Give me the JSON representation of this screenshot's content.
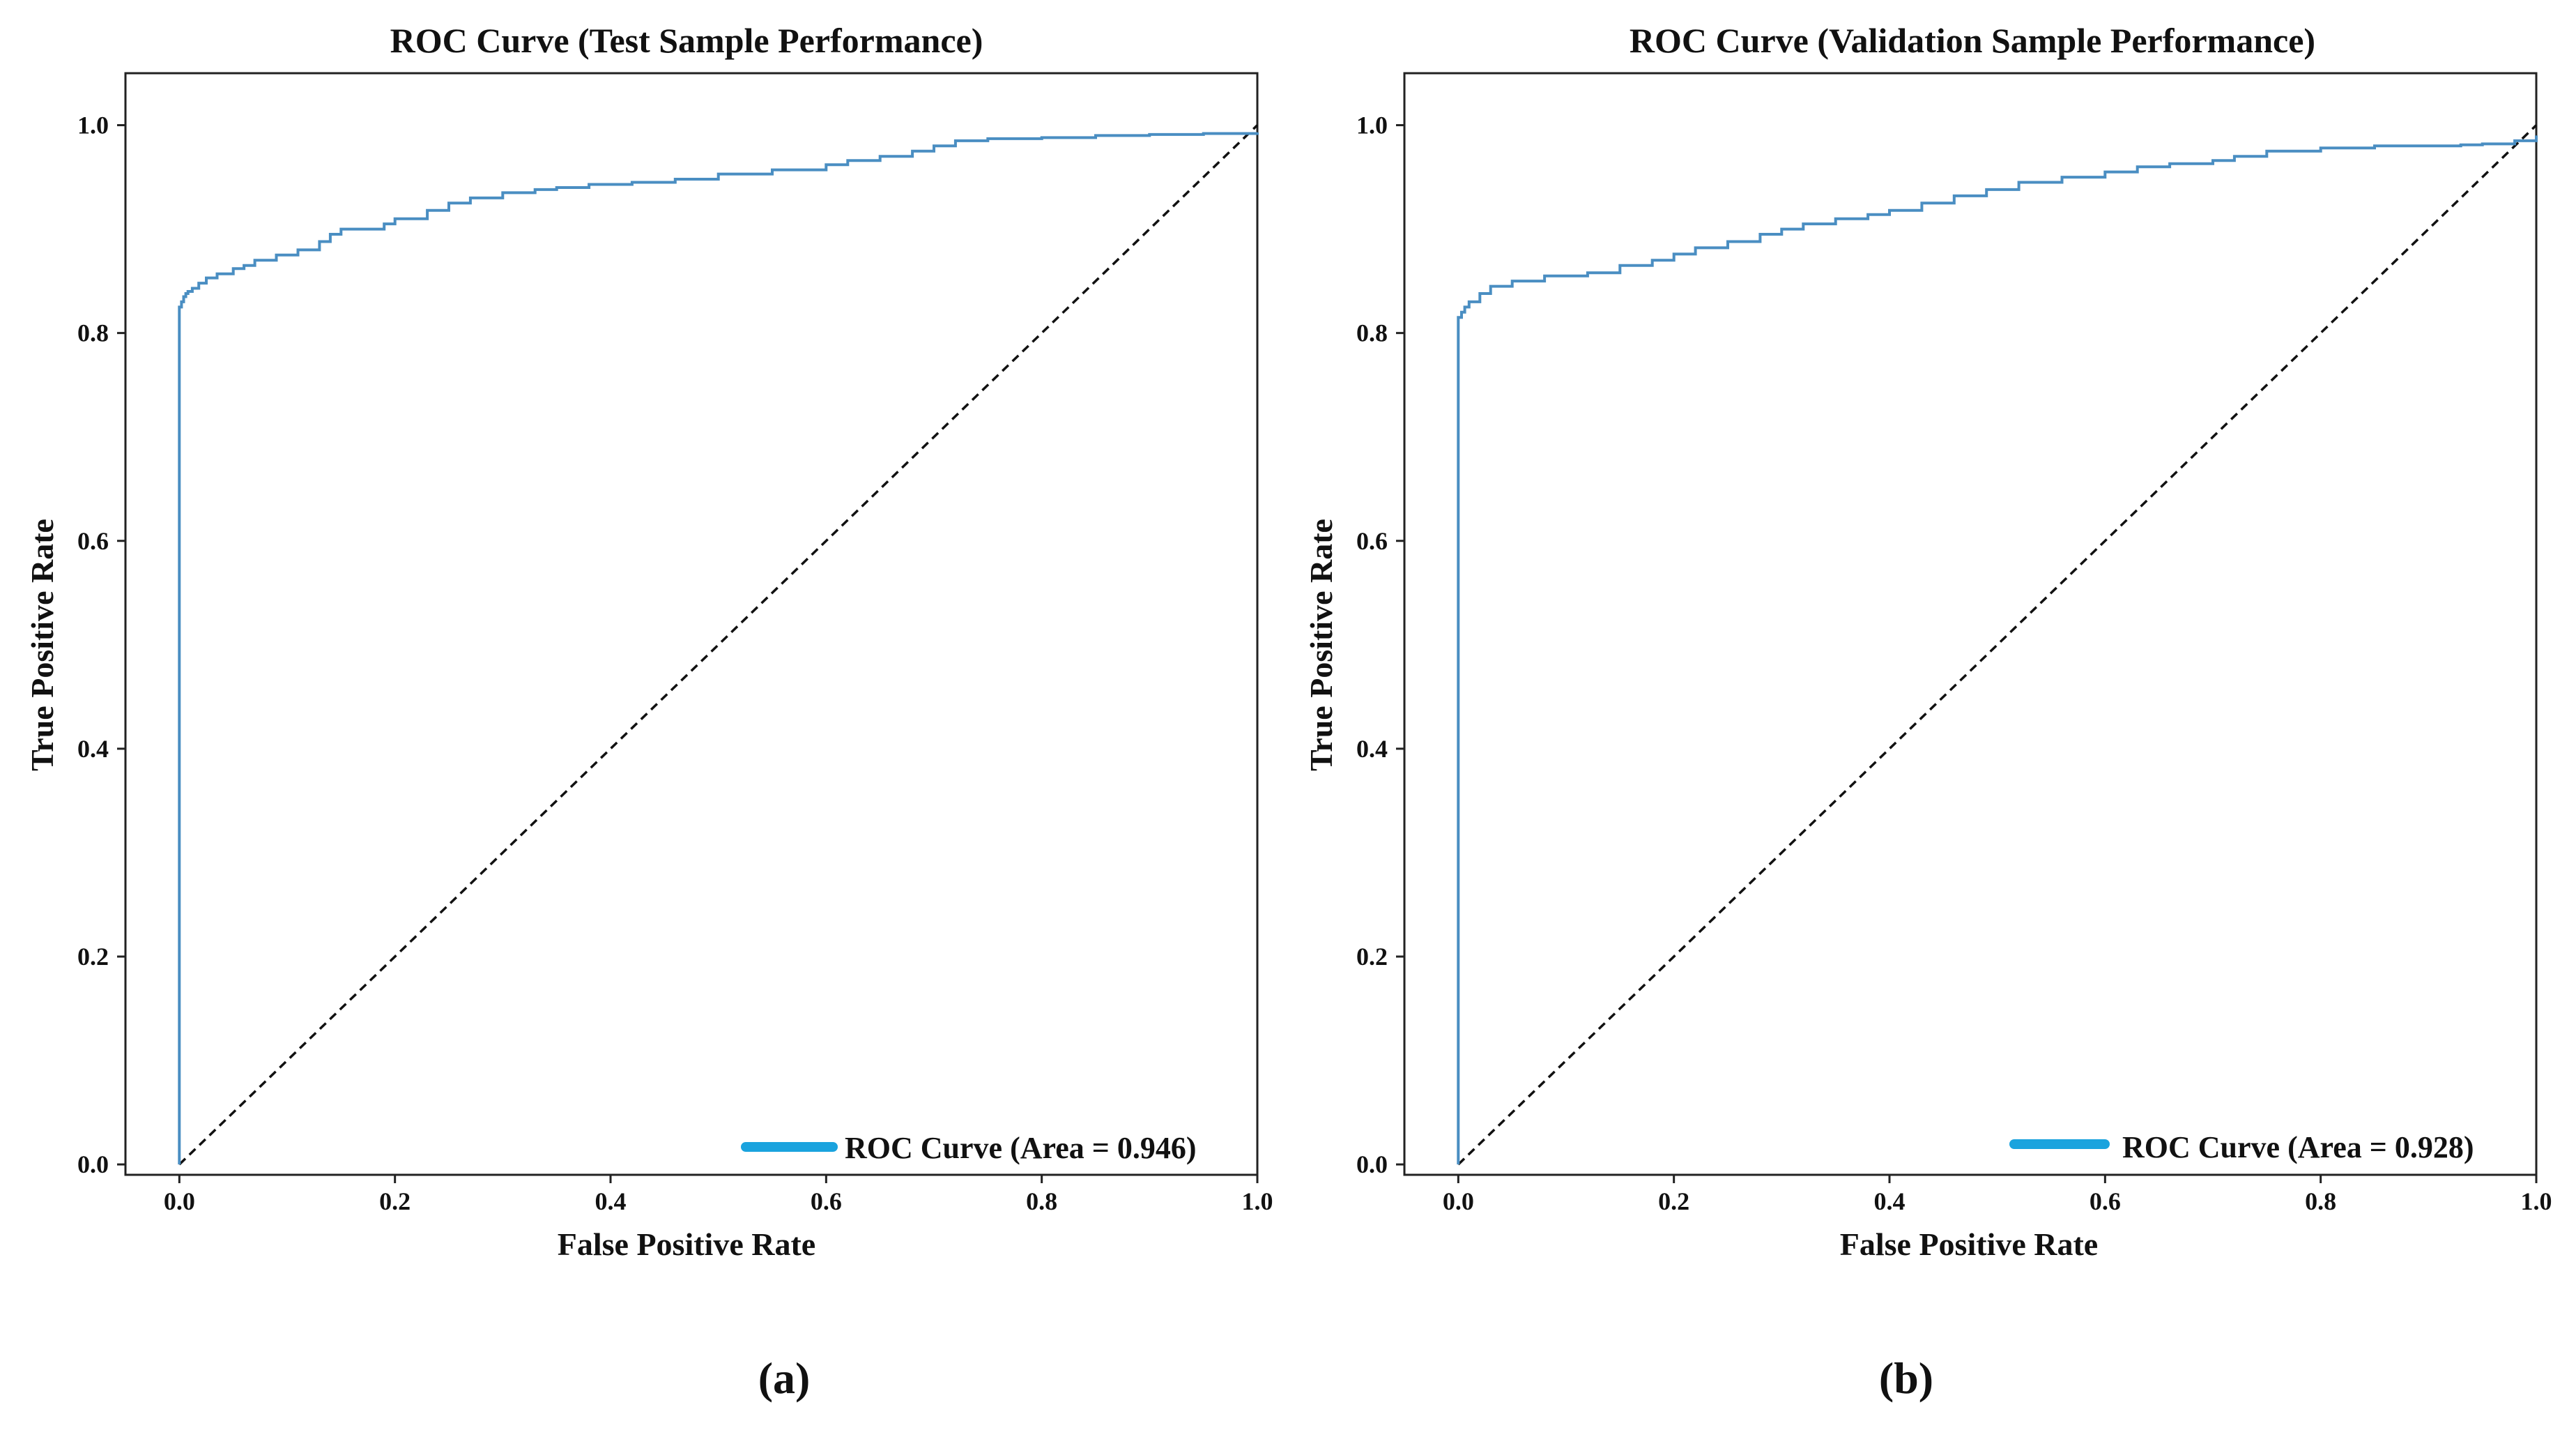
{
  "colors": {
    "roc": "#4a8ec2",
    "legend_line": "#1aa3de",
    "diagonal": "#111111",
    "frame": "#222222"
  },
  "chart_data": [
    {
      "type": "line",
      "title": "ROC Curve (Test Sample Performance)",
      "xlabel": "False Positive Rate",
      "ylabel": "True Positive Rate",
      "xlim": [
        -0.05,
        1.0
      ],
      "ylim": [
        -0.01,
        1.05
      ],
      "xticks": [
        0.0,
        0.2,
        0.4,
        0.6,
        0.8,
        1.0
      ],
      "xtick_labels": [
        "0.0",
        "0.2",
        "0.4",
        "0.6",
        "0.8",
        "1.0"
      ],
      "yticks": [
        0.0,
        0.2,
        0.4,
        0.6,
        0.8,
        1.0
      ],
      "ytick_labels": [
        "0.0",
        "0.2",
        "0.4",
        "0.6",
        "0.8",
        "1.0"
      ],
      "legend": {
        "label": "ROC Curve (Area = 0.946)",
        "placement": "lower-right"
      },
      "caption": "(a)",
      "series": [
        {
          "name": "ROC Curve (Area = 0.946)",
          "x": [
            0.0,
            0.0,
            0.002,
            0.004,
            0.006,
            0.008,
            0.012,
            0.018,
            0.025,
            0.035,
            0.05,
            0.06,
            0.07,
            0.09,
            0.11,
            0.13,
            0.14,
            0.15,
            0.19,
            0.2,
            0.23,
            0.25,
            0.27,
            0.3,
            0.33,
            0.35,
            0.38,
            0.42,
            0.46,
            0.5,
            0.55,
            0.6,
            0.62,
            0.65,
            0.68,
            0.7,
            0.72,
            0.75,
            0.8,
            0.85,
            0.9,
            0.95,
            1.0
          ],
          "y": [
            0.0,
            0.825,
            0.83,
            0.835,
            0.838,
            0.84,
            0.843,
            0.848,
            0.853,
            0.857,
            0.862,
            0.865,
            0.87,
            0.875,
            0.88,
            0.888,
            0.895,
            0.9,
            0.905,
            0.91,
            0.918,
            0.925,
            0.93,
            0.935,
            0.938,
            0.94,
            0.943,
            0.945,
            0.948,
            0.953,
            0.957,
            0.962,
            0.966,
            0.97,
            0.975,
            0.98,
            0.985,
            0.987,
            0.988,
            0.99,
            0.991,
            0.992,
            0.993
          ]
        }
      ]
    },
    {
      "type": "line",
      "title": "ROC Curve (Validation Sample Performance)",
      "xlabel": "False Positive Rate",
      "ylabel": "True Positive Rate",
      "xlim": [
        -0.05,
        1.0
      ],
      "ylim": [
        -0.01,
        1.05
      ],
      "xticks": [
        0.0,
        0.2,
        0.4,
        0.6,
        0.8,
        1.0
      ],
      "xtick_labels": [
        "0.0",
        "0.2",
        "0.4",
        "0.6",
        "0.8",
        "1.0"
      ],
      "yticks": [
        0.0,
        0.2,
        0.4,
        0.6,
        0.8,
        1.0
      ],
      "ytick_labels": [
        "0.0",
        "0.2",
        "0.4",
        "0.6",
        "0.8",
        "1.0"
      ],
      "legend": {
        "label": "ROC Curve (Area = 0.928)",
        "placement": "lower-right"
      },
      "caption": "(b)",
      "series": [
        {
          "name": "ROC Curve (Area = 0.928)",
          "x": [
            0.0,
            0.0,
            0.003,
            0.006,
            0.01,
            0.02,
            0.03,
            0.05,
            0.08,
            0.12,
            0.15,
            0.18,
            0.2,
            0.22,
            0.25,
            0.28,
            0.3,
            0.32,
            0.35,
            0.38,
            0.4,
            0.43,
            0.46,
            0.49,
            0.52,
            0.56,
            0.6,
            0.63,
            0.66,
            0.7,
            0.72,
            0.75,
            0.8,
            0.85,
            0.9,
            0.93,
            0.95,
            0.98,
            1.0
          ],
          "y": [
            0.0,
            0.815,
            0.82,
            0.825,
            0.83,
            0.838,
            0.845,
            0.85,
            0.855,
            0.858,
            0.865,
            0.87,
            0.876,
            0.882,
            0.888,
            0.895,
            0.9,
            0.905,
            0.91,
            0.914,
            0.918,
            0.925,
            0.932,
            0.938,
            0.945,
            0.95,
            0.955,
            0.96,
            0.963,
            0.966,
            0.97,
            0.975,
            0.978,
            0.98,
            0.98,
            0.981,
            0.982,
            0.985,
            0.99
          ]
        }
      ]
    }
  ]
}
